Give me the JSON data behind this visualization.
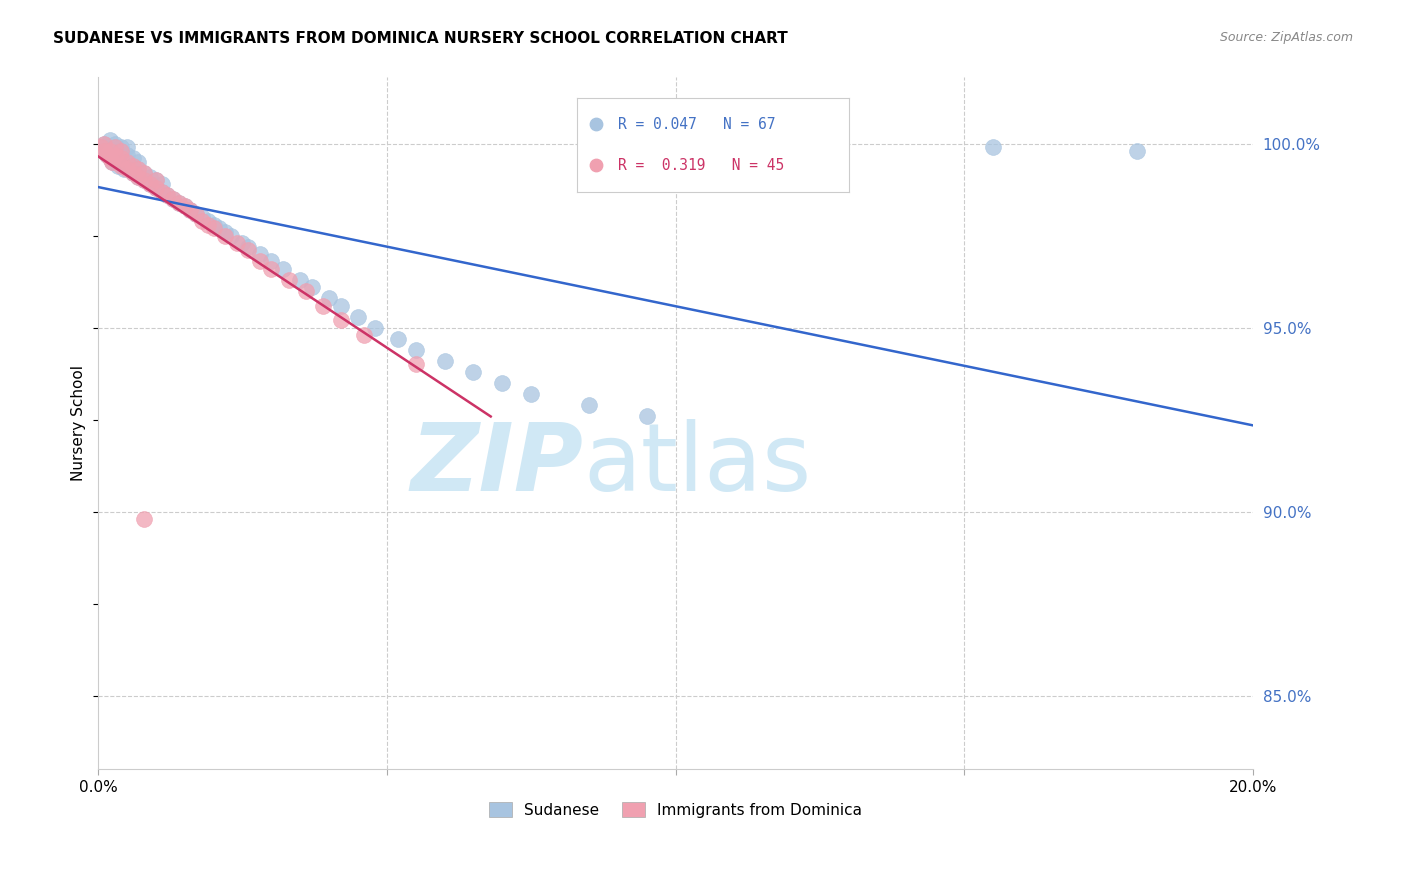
{
  "title": "SUDANESE VS IMMIGRANTS FROM DOMINICA NURSERY SCHOOL CORRELATION CHART",
  "source": "Source: ZipAtlas.com",
  "ylabel": "Nursery School",
  "legend1_label": "Sudanese",
  "legend2_label": "Immigrants from Dominica",
  "R1": 0.047,
  "N1": 67,
  "R2": 0.319,
  "N2": 45,
  "color1": "#a8c4e0",
  "color2": "#f0a0b0",
  "line_color1": "#3366cc",
  "line_color2": "#cc3366",
  "watermark_color": "#d0e8f5",
  "xmin": 0.0,
  "xmax": 0.2,
  "ymin": 0.83,
  "ymax": 1.018,
  "yticks": [
    0.85,
    0.9,
    0.95,
    1.0
  ],
  "ytick_labels": [
    "85.0%",
    "90.0%",
    "95.0%",
    "100.0%"
  ],
  "sudanese_x": [
    0.0005,
    0.001,
    0.001,
    0.0015,
    0.0015,
    0.002,
    0.002,
    0.002,
    0.0025,
    0.003,
    0.003,
    0.003,
    0.0035,
    0.004,
    0.004,
    0.004,
    0.0045,
    0.005,
    0.005,
    0.005,
    0.006,
    0.006,
    0.006,
    0.007,
    0.007,
    0.007,
    0.008,
    0.008,
    0.009,
    0.009,
    0.01,
    0.01,
    0.011,
    0.011,
    0.012,
    0.013,
    0.014,
    0.015,
    0.016,
    0.017,
    0.018,
    0.019,
    0.02,
    0.021,
    0.022,
    0.023,
    0.025,
    0.026,
    0.028,
    0.03,
    0.032,
    0.035,
    0.037,
    0.04,
    0.042,
    0.045,
    0.048,
    0.052,
    0.055,
    0.06,
    0.065,
    0.07,
    0.075,
    0.085,
    0.095,
    0.155,
    0.18
  ],
  "sudanese_y": [
    0.999,
    0.998,
    1.0,
    0.997,
    0.999,
    0.996,
    0.998,
    1.001,
    0.995,
    0.997,
    0.999,
    1.0,
    0.994,
    0.996,
    0.998,
    0.999,
    0.993,
    0.995,
    0.997,
    0.999,
    0.992,
    0.994,
    0.996,
    0.991,
    0.993,
    0.995,
    0.99,
    0.992,
    0.989,
    0.991,
    0.988,
    0.99,
    0.987,
    0.989,
    0.986,
    0.985,
    0.984,
    0.983,
    0.982,
    0.981,
    0.98,
    0.979,
    0.978,
    0.977,
    0.976,
    0.975,
    0.973,
    0.972,
    0.97,
    0.968,
    0.966,
    0.963,
    0.961,
    0.958,
    0.956,
    0.953,
    0.95,
    0.947,
    0.944,
    0.941,
    0.938,
    0.935,
    0.932,
    0.929,
    0.926,
    0.999,
    0.998
  ],
  "dominica_x": [
    0.0005,
    0.001,
    0.001,
    0.0015,
    0.002,
    0.002,
    0.0025,
    0.003,
    0.003,
    0.004,
    0.004,
    0.004,
    0.005,
    0.005,
    0.006,
    0.006,
    0.007,
    0.007,
    0.008,
    0.008,
    0.009,
    0.01,
    0.01,
    0.011,
    0.012,
    0.013,
    0.014,
    0.015,
    0.016,
    0.017,
    0.018,
    0.019,
    0.02,
    0.022,
    0.024,
    0.026,
    0.028,
    0.03,
    0.033,
    0.036,
    0.039,
    0.042,
    0.046,
    0.055,
    0.008
  ],
  "dominica_y": [
    0.999,
    0.998,
    1.0,
    0.997,
    0.996,
    0.998,
    0.995,
    0.997,
    0.999,
    0.994,
    0.996,
    0.998,
    0.993,
    0.995,
    0.992,
    0.994,
    0.991,
    0.993,
    0.99,
    0.992,
    0.989,
    0.988,
    0.99,
    0.987,
    0.986,
    0.985,
    0.984,
    0.983,
    0.982,
    0.981,
    0.979,
    0.978,
    0.977,
    0.975,
    0.973,
    0.971,
    0.968,
    0.966,
    0.963,
    0.96,
    0.956,
    0.952,
    0.948,
    0.94,
    0.898
  ]
}
